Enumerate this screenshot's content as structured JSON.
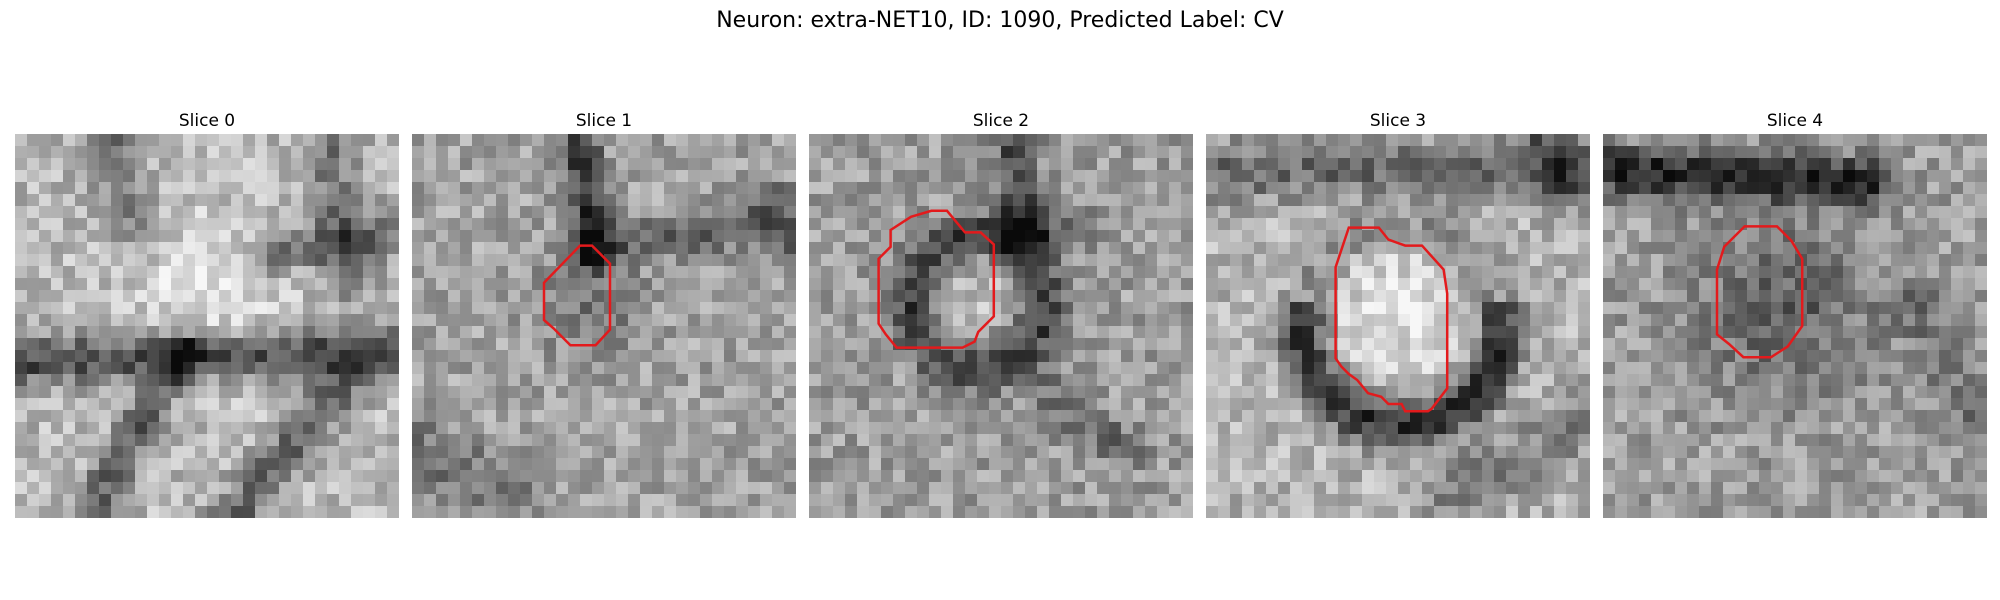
{
  "figure": {
    "title": "Neuron: extra-NET10, ID: 1090, Predicted Label: CV"
  },
  "colors": {
    "roi_outline": "#e31a1c",
    "colormap": "grayscale"
  },
  "panels": [
    {
      "title": "Slice 0",
      "has_roi": false
    },
    {
      "title": "Slice 1",
      "has_roi": true
    },
    {
      "title": "Slice 2",
      "has_roi": true
    },
    {
      "title": "Slice 3",
      "has_roi": true
    },
    {
      "title": "Slice 4",
      "has_roi": true
    }
  ]
}
